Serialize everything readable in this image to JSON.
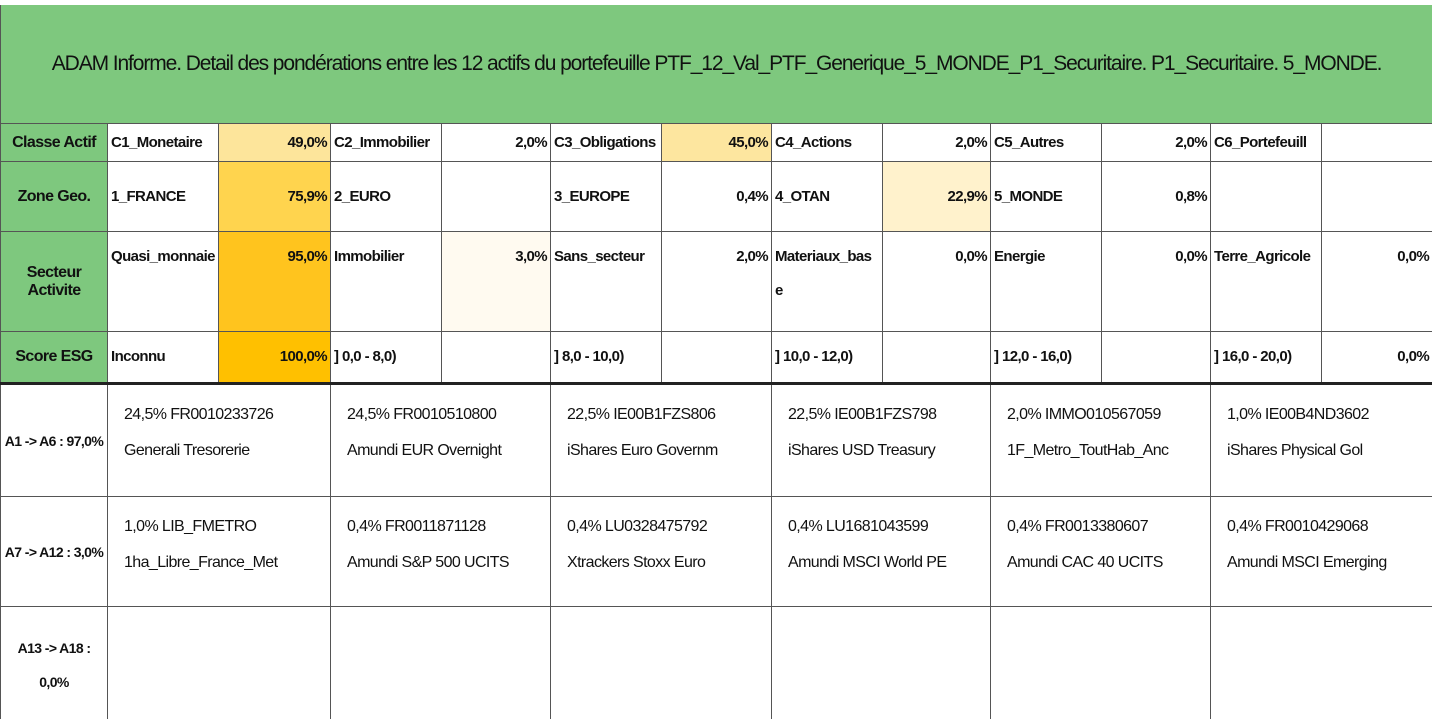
{
  "header": {
    "title": "ADAM Informe. Detail des pondérations entre les 12 actifs du portefeuille PTF_12_Val_PTF_Generique_5_MONDE_P1_Securitaire. P1_Securitaire. 5_MONDE."
  },
  "weights_table": {
    "rows": [
      {
        "label": "Classe Actif",
        "cells": [
          {
            "name": "C1_Monetaire",
            "value": "49,0%",
            "fill": "#fde59b"
          },
          {
            "name": "C2_Immobilier",
            "value": "2,0%",
            "fill": null
          },
          {
            "name": "C3_Obligations",
            "value": "45,0%",
            "fill": "#fde69f"
          },
          {
            "name": "C4_Actions",
            "value": "2,0%",
            "fill": null
          },
          {
            "name": "C5_Autres",
            "value": "2,0%",
            "fill": null
          },
          {
            "name": "C6_Portefeuill",
            "value": null,
            "fill": null
          }
        ]
      },
      {
        "label": "Zone Geo.",
        "cells": [
          {
            "name": "1_FRANCE",
            "value": "75,9%",
            "fill": "#ffd44e"
          },
          {
            "name": "2_EURO",
            "value": null,
            "fill": null
          },
          {
            "name": "3_EUROPE",
            "value": "0,4%",
            "fill": null
          },
          {
            "name": "4_OTAN",
            "value": "22,9%",
            "fill": "#fff2cc"
          },
          {
            "name": "5_MONDE",
            "value": "0,8%",
            "fill": null
          },
          {
            "name": null,
            "value": null,
            "fill": null
          }
        ]
      },
      {
        "label": "Secteur Activite",
        "cells": [
          {
            "name": "Quasi_monnaie",
            "value": "95,0%",
            "fill": "#ffc41e"
          },
          {
            "name": "Immobilier",
            "value": "3,0%",
            "fill": "#fffaf0"
          },
          {
            "name": "Sans_secteur",
            "value": "2,0%",
            "fill": null
          },
          {
            "name": "Materiaux_base",
            "value": "0,0%",
            "fill": null
          },
          {
            "name": "Energie",
            "value": "0,0%",
            "fill": null
          },
          {
            "name": "Terre_Agricole",
            "value": "0,0%",
            "fill": null
          }
        ]
      },
      {
        "label": "Score ESG",
        "cells": [
          {
            "name": "Inconnu",
            "value": "100,0%",
            "fill": "#ffc000"
          },
          {
            "name": "] 0,0 - 8,0)",
            "value": null,
            "fill": null
          },
          {
            "name": "] 8,0 - 10,0)",
            "value": null,
            "fill": null
          },
          {
            "name": "] 10,0 - 12,0)",
            "value": null,
            "fill": null
          },
          {
            "name": "] 12,0 - 16,0)",
            "value": null,
            "fill": null
          },
          {
            "name": "] 16,0 - 20,0)",
            "value": "0,0%",
            "fill": null
          }
        ]
      }
    ]
  },
  "assets_table": {
    "rows": [
      {
        "label": "A1 -> A6 : 97,0%",
        "cells": [
          {
            "line1": "24,5% FR0010233726",
            "line2": "Generali Tresorerie"
          },
          {
            "line1": "24,5% FR0010510800",
            "line2": "Amundi EUR Overnight"
          },
          {
            "line1": "22,5% IE00B1FZS806",
            "line2": "iShares Euro Governm"
          },
          {
            "line1": "22,5% IE00B1FZS798",
            "line2": "iShares USD Treasury"
          },
          {
            "line1": "2,0% IMMO010567059",
            "line2": "1F_Metro_ToutHab_Anc"
          },
          {
            "line1": "1,0% IE00B4ND3602",
            "line2": "iShares Physical Gol"
          }
        ]
      },
      {
        "label": "A7 -> A12 : 3,0%",
        "cells": [
          {
            "line1": "1,0% LIB_FMETRO",
            "line2": "1ha_Libre_France_Met"
          },
          {
            "line1": "0,4% FR0011871128",
            "line2": "Amundi S&P 500 UCITS"
          },
          {
            "line1": "0,4% LU0328475792",
            "line2": "Xtrackers Stoxx Euro"
          },
          {
            "line1": "0,4% LU1681043599",
            "line2": "Amundi MSCI World PE"
          },
          {
            "line1": "0,4% FR0013380607",
            "line2": "Amundi CAC 40 UCITS"
          },
          {
            "line1": "0,4% FR0010429068",
            "line2": "Amundi MSCI Emerging"
          }
        ]
      },
      {
        "label": "A13 -> A18 : 0,0%",
        "cells": []
      }
    ]
  }
}
